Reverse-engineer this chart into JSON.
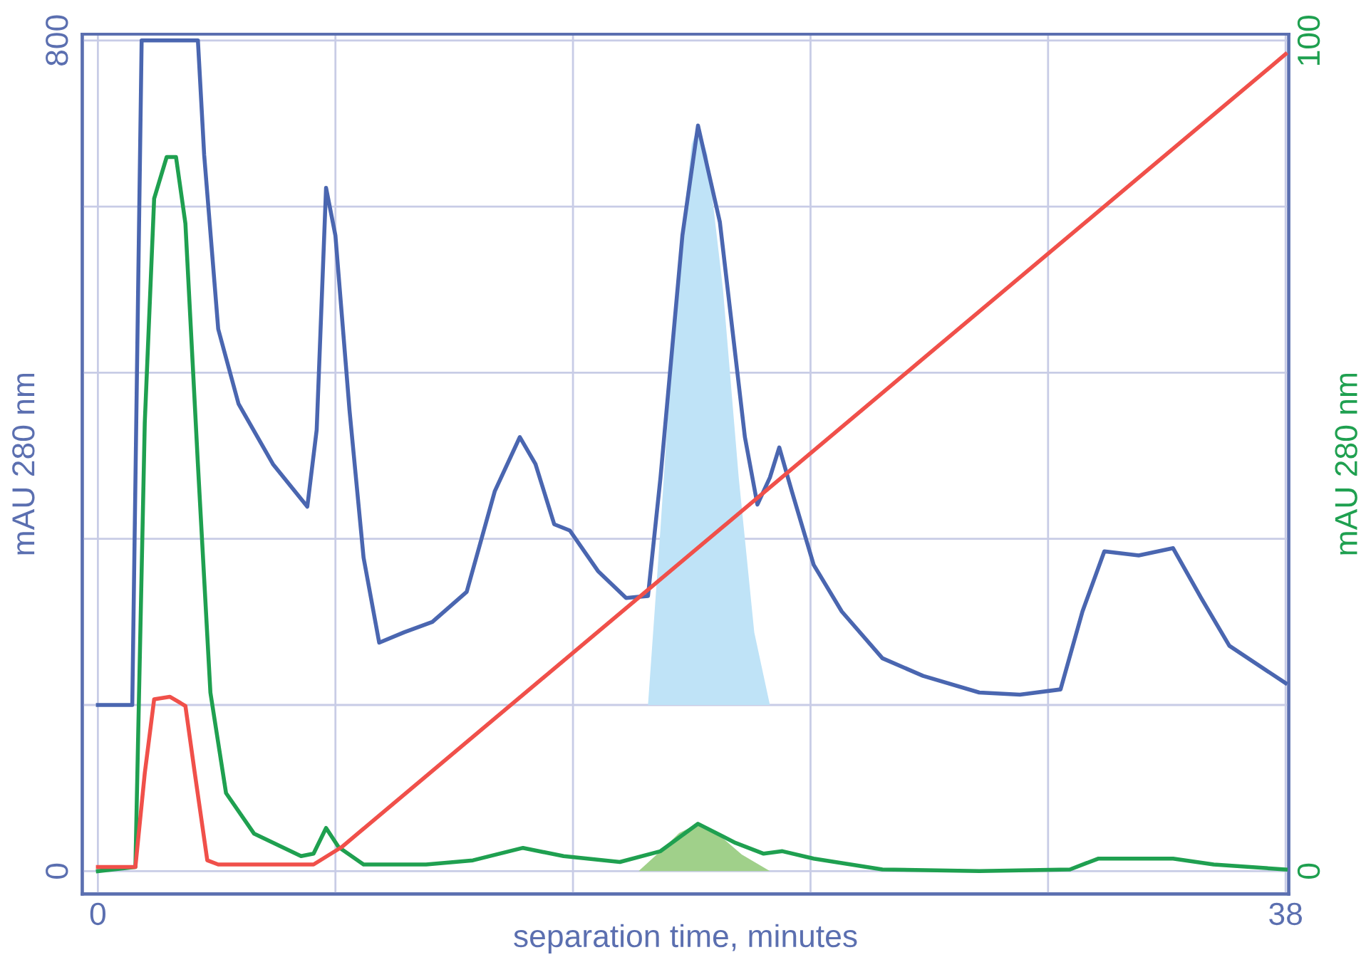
{
  "chart_data": {
    "type": "line",
    "xlabel": "separation time, minutes",
    "ylabel": "mAU 280 nm",
    "y2label": "mAU 280 nm",
    "xlim": [
      -0.5,
      38.1
    ],
    "xticks": [
      0,
      {
        "value": 7.6,
        "label": null
      },
      {
        "value": 15.2,
        "label": null
      },
      {
        "value": 22.8,
        "label": null
      },
      {
        "value": 30.4,
        "label": null
      },
      38
    ],
    "ylim": [
      -22,
      806
    ],
    "yticks": [
      0,
      {
        "value": 160,
        "label": null
      },
      {
        "value": 320,
        "label": null
      },
      {
        "value": 480,
        "label": null
      },
      {
        "value": 640,
        "label": null
      },
      800
    ],
    "y2lim": [
      -2.75,
      100.8
    ],
    "y2ticks": [
      0,
      100
    ],
    "grid": true,
    "legend": false,
    "series": [
      {
        "type": "area",
        "color": "#bfe3f7",
        "x": [
          17.6,
          18.0,
          18.5,
          19.0,
          19.2,
          19.5,
          20.0,
          20.5,
          21.0,
          21.5
        ],
        "values": [
          160,
          330,
          560,
          700,
          718,
          690,
          560,
          380,
          230,
          160
        ]
      },
      {
        "type": "area",
        "color": "#a0d08a",
        "axis": "y2",
        "x": [
          17.3,
          18.0,
          18.6,
          19.2,
          19.8,
          20.6,
          21.5
        ],
        "values": [
          0,
          2.4,
          4.6,
          5.7,
          4.6,
          2.0,
          0
        ]
      },
      {
        "color": "#4a66b0",
        "x": [
          0,
          1.1,
          1.4,
          3.2,
          3.4,
          3.85,
          4.5,
          5.6,
          6.7,
          7.0,
          7.3,
          7.6,
          8.05,
          8.5,
          9.0,
          9.8,
          10.7,
          11.8,
          12.7,
          13.5,
          14.0,
          14.6,
          15.1,
          16.0,
          16.9,
          17.6,
          18.0,
          18.7,
          19.2,
          19.9,
          20.7,
          21.1,
          21.5,
          21.8,
          22.2,
          22.9,
          23.8,
          25.1,
          26.4,
          28.2,
          29.5,
          30.8,
          31.5,
          32.2,
          33.3,
          34.4,
          35.3,
          36.2,
          38
        ],
        "values": [
          160,
          160,
          800,
          800,
          690,
          522,
          450,
          392,
          351,
          425,
          658,
          612,
          444,
          302,
          220,
          230,
          240,
          269,
          366,
          418,
          392,
          334,
          328,
          289,
          263,
          265,
          379,
          612,
          718,
          625,
          418,
          353,
          379,
          408,
          366,
          295,
          250,
          205,
          188,
          172,
          170,
          175,
          250,
          308,
          304,
          311,
          263,
          217,
          181
        ]
      },
      {
        "color": "#1fa050",
        "axis": "y2",
        "x": [
          0,
          1.2,
          1.5,
          1.8,
          2.2,
          2.5,
          2.8,
          3.2,
          3.6,
          4.1,
          5.0,
          6.5,
          6.9,
          7.3,
          7.7,
          8.5,
          10.5,
          12.0,
          13.6,
          14.9,
          16.7,
          18.0,
          19.2,
          20.4,
          21.3,
          21.9,
          22.9,
          25.1,
          28.2,
          31.1,
          32.0,
          34.4,
          35.7,
          38
        ],
        "values": [
          0,
          0.5,
          54,
          81,
          86,
          86,
          78,
          49,
          21.5,
          9.4,
          4.5,
          1.8,
          2.1,
          5.2,
          2.9,
          0.8,
          0.8,
          1.3,
          2.8,
          1.8,
          1.1,
          2.4,
          5.7,
          3.4,
          2.1,
          2.4,
          1.5,
          0.2,
          0,
          0.2,
          1.5,
          1.5,
          0.8,
          0.2
        ]
      },
      {
        "color": "#f0504a",
        "axis": "y2",
        "x": [
          0,
          1.2,
          1.5,
          1.8,
          2.3,
          2.8,
          3.1,
          3.5,
          3.85,
          6.9,
          7.8,
          38
        ],
        "values": [
          0.5,
          0.5,
          11.8,
          20.7,
          21,
          19.9,
          11.8,
          1.3,
          0.8,
          0.8,
          2.9,
          98.4
        ]
      }
    ]
  }
}
